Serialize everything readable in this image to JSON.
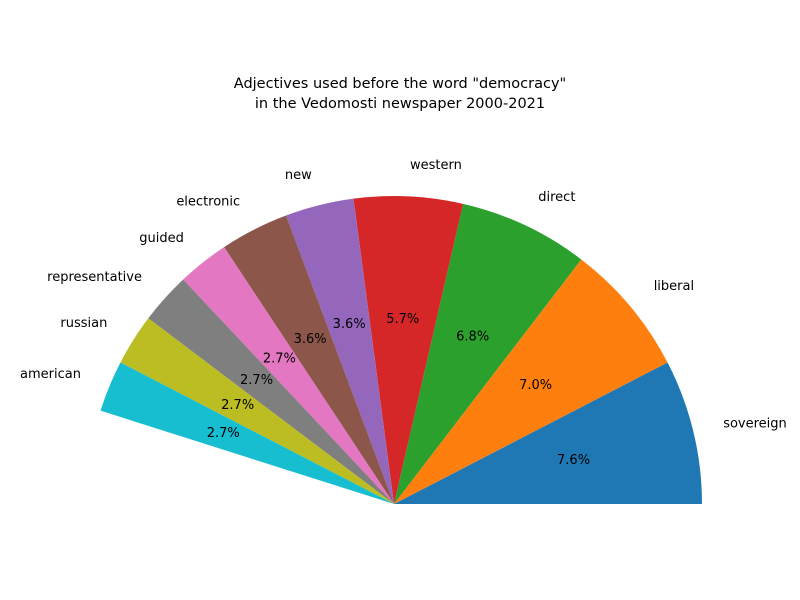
{
  "chart_data": {
    "type": "pie",
    "title_lines": [
      "Adjectives used before the word \"democracy\"",
      "in the Vedomosti newspaper 2000-2021"
    ],
    "categories": [
      "sovereign",
      "liberal",
      "direct",
      "western",
      "new",
      "electronic",
      "guided",
      "representative",
      "russian",
      "american"
    ],
    "values": [
      7.6,
      7.0,
      6.8,
      5.7,
      3.6,
      3.6,
      2.7,
      2.7,
      2.7,
      2.7
    ],
    "value_labels": [
      "7.6%",
      "7.0%",
      "6.8%",
      "5.7%",
      "3.6%",
      "3.6%",
      "2.7%",
      "2.7%",
      "2.7%",
      "2.7%"
    ],
    "colors": [
      "#1f77b4",
      "#ff7f0e",
      "#2ca02c",
      "#d62728",
      "#9467bd",
      "#8c564b",
      "#e377c2",
      "#7f7f7f",
      "#bcbd22",
      "#17becf"
    ],
    "start_angle_deg": 0,
    "direction": "counterclockwise",
    "legend": "none"
  }
}
